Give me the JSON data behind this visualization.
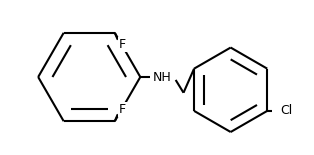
{
  "background_color": "#ffffff",
  "bond_color": "#000000",
  "atom_color": "#000000",
  "bond_width": 1.5,
  "figsize": [
    3.14,
    1.55
  ],
  "dpi": 100,
  "labels": {
    "F_top": {
      "text": "F",
      "fontsize": 9
    },
    "F_bot": {
      "text": "F",
      "fontsize": 9
    },
    "NH": {
      "text": "NH",
      "fontsize": 9
    },
    "Cl": {
      "text": "Cl",
      "fontsize": 9
    }
  },
  "inner_scale": 0.72
}
